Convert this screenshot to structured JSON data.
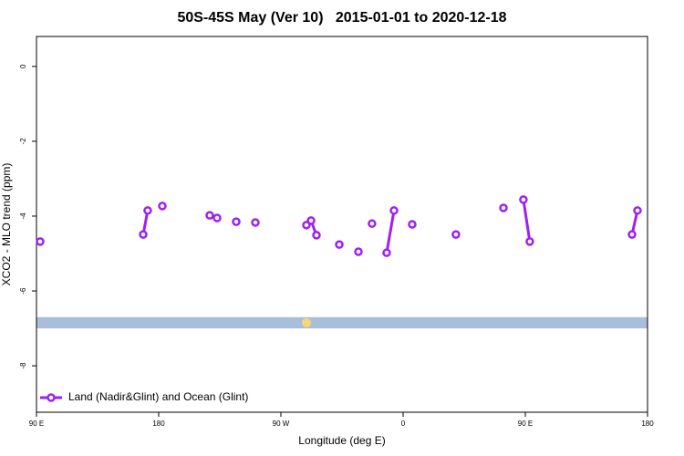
{
  "chart_data": {
    "type": "line",
    "title": "50S-45S May (Ver 10)   2015-01-01 to 2020-12-18",
    "x_label": "Longitude (deg E)",
    "y_label": "XCO2 - MLO trend (ppm)",
    "xlim": [
      90,
      540
    ],
    "xticks": [
      {
        "value": 90,
        "label": "90 E"
      },
      180,
      {
        "value": 270,
        "label": "90 W"
      },
      {
        "value": 360,
        "label": "0"
      },
      {
        "value": 450,
        "label": "90 E"
      },
      {
        "value": 540,
        "label": "180"
      }
    ],
    "ylim": [
      -9.24,
      0.8
    ],
    "yticks": [
      0,
      -2,
      -4,
      -6,
      -8
    ],
    "grid": false,
    "legend": "bottom-left",
    "reference_band": {
      "ylim": [
        -7.0,
        -6.7
      ],
      "color": "#a9bedb"
    },
    "series": [
      {
        "name": "Land (Nadir&Glint) and Ocean (Glint)",
        "color": "#a020f0",
        "x": [
          92.7,
          null,
          168.6,
          171.9,
          null,
          182.7,
          null,
          217.6,
          null,
          223.0,
          null,
          237.1,
          null,
          251.2,
          null,
          288.8,
          292.2,
          296.2,
          null,
          313.0,
          null,
          327.1,
          null,
          337.1,
          null,
          347.9,
          353.3,
          null,
          366.7,
          null,
          398.9,
          null,
          433.9,
          null,
          448.6,
          453.3,
          null,
          528.6,
          532.6
        ],
        "values": [
          -4.68,
          null,
          -4.49,
          -3.85,
          null,
          -3.73,
          null,
          -3.98,
          null,
          -4.05,
          null,
          -4.15,
          null,
          -4.17,
          null,
          -4.24,
          -4.12,
          -4.51,
          null,
          -4.76,
          null,
          -4.95,
          null,
          -4.2,
          null,
          -4.98,
          -3.85,
          null,
          -4.22,
          null,
          -4.49,
          null,
          -3.78,
          null,
          -3.56,
          -4.68,
          null,
          -4.49,
          -3.85
        ]
      }
    ]
  }
}
